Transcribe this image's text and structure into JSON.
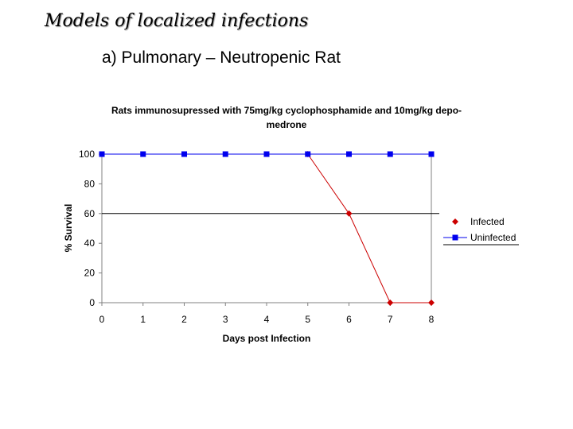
{
  "slide": {
    "title": "Models of localized infections",
    "subtitle": "a) Pulmonary – Neutropenic Rat"
  },
  "chart_data": {
    "type": "line",
    "title_lines": [
      "Rats immunosupressed with 75mg/kg cyclophosphamide and 10mg/kg depo-",
      "medrone"
    ],
    "xlabel": "Days post Infection",
    "ylabel": "% Survival",
    "x": [
      0,
      1,
      2,
      3,
      4,
      5,
      6,
      7,
      8
    ],
    "xlim": [
      0,
      8
    ],
    "ylim": [
      0,
      100
    ],
    "yticks": [
      0,
      20,
      40,
      60,
      80,
      100
    ],
    "reference_line_y": 60,
    "legend_position": "right",
    "series": [
      {
        "name": "Infected",
        "color": "#cc0000",
        "marker": "diamond",
        "x": [
          5,
          6,
          7,
          8
        ],
        "values": [
          100,
          60,
          0,
          0
        ]
      },
      {
        "name": "Uninfected",
        "color": "#0000ee",
        "marker": "square",
        "x": [
          0,
          1,
          2,
          3,
          4,
          5,
          6,
          7,
          8
        ],
        "values": [
          100,
          100,
          100,
          100,
          100,
          100,
          100,
          100,
          100
        ]
      }
    ]
  }
}
